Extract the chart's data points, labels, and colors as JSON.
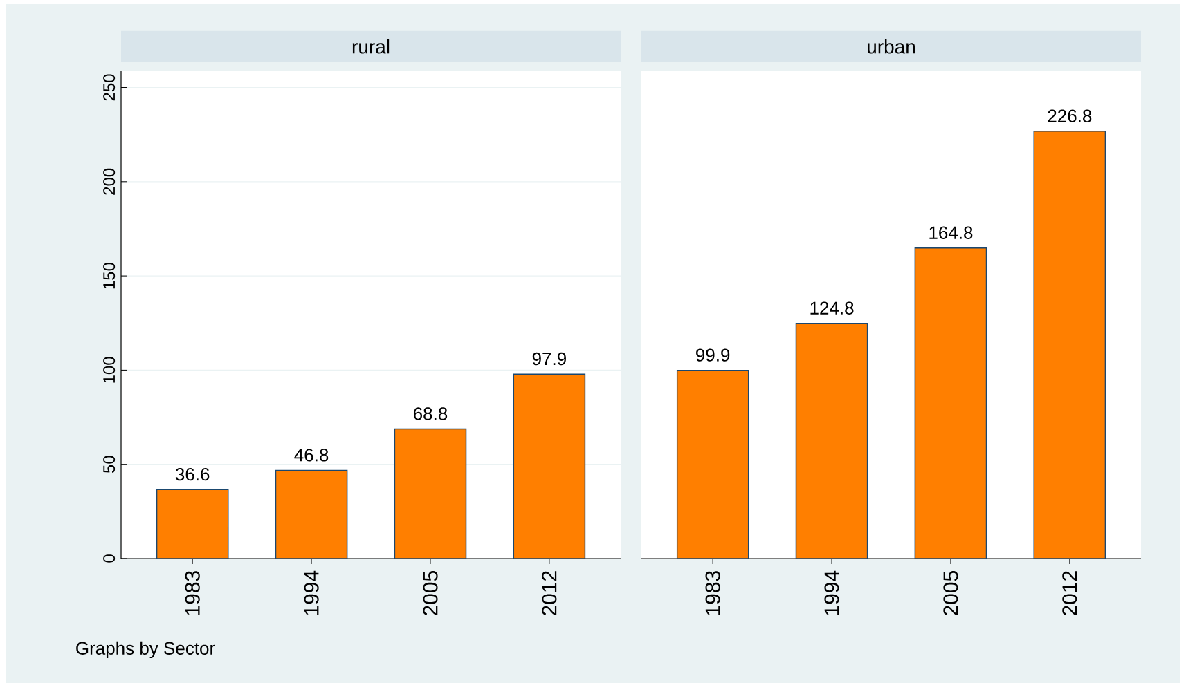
{
  "chart_data": [
    {
      "type": "bar",
      "title": "rural",
      "categories": [
        "1983",
        "1994",
        "2005",
        "2012"
      ],
      "values": [
        36.6,
        46.8,
        68.8,
        97.9
      ],
      "color": "#ff7f00",
      "ylim": [
        0,
        259
      ],
      "yticks": [
        0,
        50,
        100,
        150,
        200,
        250
      ],
      "grid": "y",
      "data_labels": true,
      "annotations": [
        "Graphs by Sector"
      ]
    },
    {
      "type": "bar",
      "title": "urban",
      "categories": [
        "1983",
        "1994",
        "2005",
        "2012"
      ],
      "values": [
        99.9,
        124.8,
        164.8,
        226.8
      ],
      "color": "#ff7f00",
      "ylim": [
        0,
        259
      ],
      "yticks": [
        0,
        50,
        100,
        150,
        200,
        250
      ],
      "grid": "y",
      "data_labels": true,
      "tick_labels": "x"
    }
  ]
}
